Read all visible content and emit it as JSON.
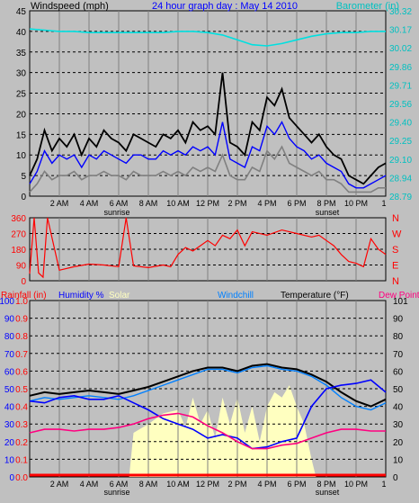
{
  "chart_data": [
    {
      "type": "line",
      "title": "24 hour graph day : May 14 2010",
      "ylabel_left": "Windspeed (mph)",
      "ylabel_right": "Barometer (in)",
      "x_ticks": [
        "2 AM",
        "4 AM",
        "6 AM",
        "8 AM",
        "10 AM",
        "12 PM",
        "2 PM",
        "4 PM",
        "6 PM",
        "8 PM",
        "10 PM",
        "1"
      ],
      "sun_labels": {
        "sunrise": "sunrise",
        "sunset": "sunset"
      },
      "xlim": [
        0,
        24
      ],
      "ylim_left": [
        0,
        45
      ],
      "yticks_left": [
        0,
        5,
        10,
        15,
        20,
        25,
        30,
        35,
        40,
        45
      ],
      "ylim_right": [
        28.79,
        30.32
      ],
      "yticks_right": [
        "28.79",
        "28.94",
        "29.10",
        "29.25",
        "29.40",
        "29.56",
        "29.71",
        "29.86",
        "30.02",
        "30.17",
        "30.32"
      ],
      "grid": true,
      "colors": {
        "gust": "#000000",
        "wind": "#0000ff",
        "avg": "#808080",
        "barometer": "#00e0e0",
        "right_axis": "#00c0c0"
      },
      "series": [
        {
          "name": "Barometer (in)",
          "axis": "right",
          "x": [
            0,
            1,
            2,
            3,
            4,
            5,
            6,
            7,
            8,
            9,
            10,
            11,
            12,
            13,
            14,
            15,
            16,
            17,
            18,
            19,
            20,
            21,
            22,
            23,
            24
          ],
          "values": [
            30.17,
            30.16,
            30.15,
            30.15,
            30.14,
            30.14,
            30.14,
            30.14,
            30.14,
            30.14,
            30.15,
            30.15,
            30.14,
            30.12,
            30.08,
            30.04,
            30.03,
            30.05,
            30.08,
            30.11,
            30.13,
            30.14,
            30.14,
            30.15,
            30.15
          ]
        }
      ],
      "unlabeled_series": [
        {
          "role": "gust",
          "axis": "left",
          "x": [
            0,
            0.5,
            1,
            1.5,
            2,
            2.5,
            3,
            3.5,
            4,
            4.5,
            5,
            5.5,
            6,
            6.5,
            7,
            7.5,
            8,
            8.5,
            9,
            9.5,
            10,
            10.5,
            11,
            11.5,
            12,
            12.5,
            13,
            13.5,
            14,
            14.5,
            15,
            15.5,
            16,
            16.5,
            17,
            17.5,
            18,
            18.5,
            19,
            19.5,
            20,
            20.5,
            21,
            21.5,
            22,
            22.5,
            23,
            23.5,
            24
          ],
          "values": [
            5,
            9,
            16,
            11,
            14,
            12,
            15,
            10,
            14,
            12,
            16,
            14,
            13,
            11,
            15,
            14,
            13,
            12,
            15,
            14,
            16,
            13,
            18,
            16,
            17,
            15,
            30,
            13,
            12,
            10,
            18,
            16,
            24,
            22,
            26,
            19,
            17,
            15,
            13,
            15,
            12,
            10,
            9,
            5,
            4,
            3,
            5,
            7,
            8
          ]
        },
        {
          "role": "wind",
          "axis": "left",
          "x": [
            0,
            0.5,
            1,
            1.5,
            2,
            2.5,
            3,
            3.5,
            4,
            4.5,
            5,
            5.5,
            6,
            6.5,
            7,
            7.5,
            8,
            8.5,
            9,
            9.5,
            10,
            10.5,
            11,
            11.5,
            12,
            12.5,
            13,
            13.5,
            14,
            14.5,
            15,
            15.5,
            16,
            16.5,
            17,
            17.5,
            18,
            18.5,
            19,
            19.5,
            20,
            20.5,
            21,
            21.5,
            22,
            22.5,
            23,
            23.5,
            24
          ],
          "values": [
            3,
            6,
            11,
            8,
            10,
            9,
            10,
            7,
            10,
            9,
            11,
            10,
            9,
            8,
            10,
            10,
            9,
            9,
            11,
            10,
            11,
            10,
            12,
            11,
            12,
            10,
            18,
            9,
            8,
            7,
            12,
            11,
            17,
            15,
            18,
            14,
            12,
            11,
            9,
            10,
            8,
            7,
            6,
            3,
            2,
            2,
            3,
            4,
            5
          ]
        },
        {
          "role": "average",
          "axis": "left",
          "x": [
            0,
            0.5,
            1,
            1.5,
            2,
            2.5,
            3,
            3.5,
            4,
            4.5,
            5,
            5.5,
            6,
            6.5,
            7,
            7.5,
            8,
            8.5,
            9,
            9.5,
            10,
            10.5,
            11,
            11.5,
            12,
            12.5,
            13,
            13.5,
            14,
            14.5,
            15,
            15.5,
            16,
            16.5,
            17,
            17.5,
            18,
            18.5,
            19,
            19.5,
            20,
            20.5,
            21,
            21.5,
            22,
            22.5,
            23,
            23.5,
            24
          ],
          "values": [
            1,
            3,
            6,
            4,
            5,
            5,
            6,
            4,
            5,
            5,
            6,
            5,
            5,
            4,
            6,
            5,
            5,
            5,
            6,
            5,
            6,
            5,
            7,
            6,
            7,
            6,
            10,
            5,
            4,
            4,
            7,
            6,
            11,
            9,
            12,
            8,
            7,
            6,
            5,
            6,
            4,
            4,
            3,
            1,
            1,
            1,
            1,
            2,
            2
          ]
        }
      ]
    },
    {
      "type": "scatter",
      "ylim": [
        0,
        360
      ],
      "yticks": [
        0,
        90,
        180,
        270,
        360
      ],
      "compass_labels": [
        "N",
        "W",
        "S",
        "E",
        "N"
      ],
      "xlim": [
        0,
        24
      ],
      "colors": {
        "direction": "#ff0000",
        "axis_labels": "#ff0000"
      },
      "unlabeled_series": [
        {
          "role": "wind direction",
          "x": [
            0,
            0.3,
            0.6,
            0.9,
            1.2,
            2,
            3,
            4,
            5,
            6,
            6.5,
            7,
            8,
            9,
            9.5,
            10,
            10.5,
            11,
            11.5,
            12,
            12.5,
            13,
            13.5,
            14,
            14.5,
            15,
            16,
            17,
            18,
            19,
            19.5,
            20,
            20.5,
            21,
            21.5,
            22,
            22.5,
            23,
            23.5,
            24
          ],
          "values": [
            40,
            360,
            45,
            20,
            360,
            60,
            80,
            95,
            90,
            80,
            360,
            85,
            75,
            90,
            80,
            150,
            190,
            170,
            200,
            230,
            200,
            260,
            240,
            290,
            200,
            280,
            260,
            290,
            270,
            250,
            260,
            230,
            200,
            150,
            110,
            100,
            80,
            240,
            180,
            150
          ]
        }
      ]
    },
    {
      "type": "line",
      "legend": [
        "Rainfall (in)",
        "Humidity %",
        "Solar",
        "Windchill",
        "Temperature (°F)",
        "Dew Point"
      ],
      "xlim": [
        0,
        24
      ],
      "ylim_left": [
        0,
        100
      ],
      "yticks_left": [
        0,
        10,
        20,
        30,
        40,
        50,
        60,
        70,
        80,
        90,
        100
      ],
      "ylim_left_rain": [
        0.0,
        1.0
      ],
      "yticks_left_rain": [
        "0.0",
        "0.1",
        "0.2",
        "0.3",
        "0.4",
        "0.5",
        "0.6",
        "0.7",
        "0.8",
        "0.9",
        "1.0"
      ],
      "ylim_right": [
        0,
        101
      ],
      "yticks_right": [
        0,
        10,
        20,
        30,
        40,
        50,
        60,
        70,
        80,
        90,
        101
      ],
      "x_ticks": [
        "2 AM",
        "4 AM",
        "6 AM",
        "8 AM",
        "10 AM",
        "12 PM",
        "2 PM",
        "4 PM",
        "6 PM",
        "8 PM",
        "10 PM",
        "1"
      ],
      "sun_labels": {
        "sunrise": "sunrise",
        "sunset": "sunset"
      },
      "colors": {
        "rain": "#ff0000",
        "humidity": "#0000ff",
        "solar": "#ffffc0",
        "windchill": "#0080ff",
        "temperature": "#000000",
        "dewpoint": "#ff0080"
      },
      "series": [
        {
          "name": "Temperature (°F)",
          "x": [
            0,
            1,
            2,
            3,
            4,
            5,
            6,
            7,
            8,
            9,
            10,
            11,
            12,
            13,
            14,
            15,
            16,
            17,
            18,
            19,
            20,
            21,
            22,
            23,
            24
          ],
          "values": [
            46,
            48,
            47,
            48,
            49,
            48,
            47,
            49,
            51,
            54,
            57,
            60,
            62,
            62,
            60,
            63,
            64,
            62,
            61,
            58,
            54,
            48,
            43,
            40,
            44
          ]
        },
        {
          "name": "Windchill",
          "x": [
            0,
            1,
            2,
            3,
            4,
            5,
            6,
            7,
            8,
            9,
            10,
            11,
            12,
            13,
            14,
            15,
            16,
            17,
            18,
            19,
            20,
            21,
            22,
            23,
            24
          ],
          "values": [
            43,
            45,
            44,
            45,
            46,
            45,
            44,
            46,
            49,
            52,
            55,
            58,
            61,
            61,
            59,
            62,
            63,
            61,
            60,
            57,
            52,
            45,
            40,
            38,
            42
          ]
        },
        {
          "name": "Humidity %",
          "x": [
            0,
            1,
            2,
            3,
            4,
            5,
            6,
            7,
            8,
            9,
            10,
            11,
            12,
            13,
            14,
            15,
            16,
            17,
            18,
            19,
            20,
            21,
            22,
            23,
            24
          ],
          "values": [
            43,
            42,
            45,
            46,
            44,
            44,
            46,
            42,
            38,
            33,
            30,
            27,
            22,
            24,
            22,
            16,
            17,
            20,
            22,
            40,
            50,
            52,
            53,
            55,
            48
          ]
        },
        {
          "name": "Dew Point",
          "x": [
            0,
            1,
            2,
            3,
            4,
            5,
            6,
            7,
            8,
            9,
            10,
            11,
            12,
            13,
            14,
            15,
            16,
            17,
            18,
            19,
            20,
            21,
            22,
            23,
            24
          ],
          "values": [
            25,
            27,
            27,
            26,
            27,
            27,
            28,
            30,
            33,
            35,
            36,
            34,
            29,
            25,
            20,
            16,
            16,
            18,
            19,
            22,
            25,
            27,
            27,
            26,
            26
          ]
        },
        {
          "name": "Solar",
          "x": [
            6.7,
            7,
            8,
            9,
            10,
            10.5,
            11,
            11.5,
            12,
            12.5,
            13,
            13.5,
            14,
            14.5,
            15,
            15.5,
            16,
            16.5,
            17,
            17.5,
            18,
            18.5,
            19,
            19.3
          ],
          "values": [
            0,
            25,
            30,
            36,
            38,
            28,
            45,
            30,
            38,
            22,
            45,
            30,
            45,
            25,
            40,
            20,
            40,
            48,
            45,
            52,
            40,
            30,
            10,
            0
          ]
        },
        {
          "name": "Rainfall (in)",
          "x": [
            0,
            24
          ],
          "values": [
            0.0,
            0.0
          ]
        }
      ]
    }
  ]
}
